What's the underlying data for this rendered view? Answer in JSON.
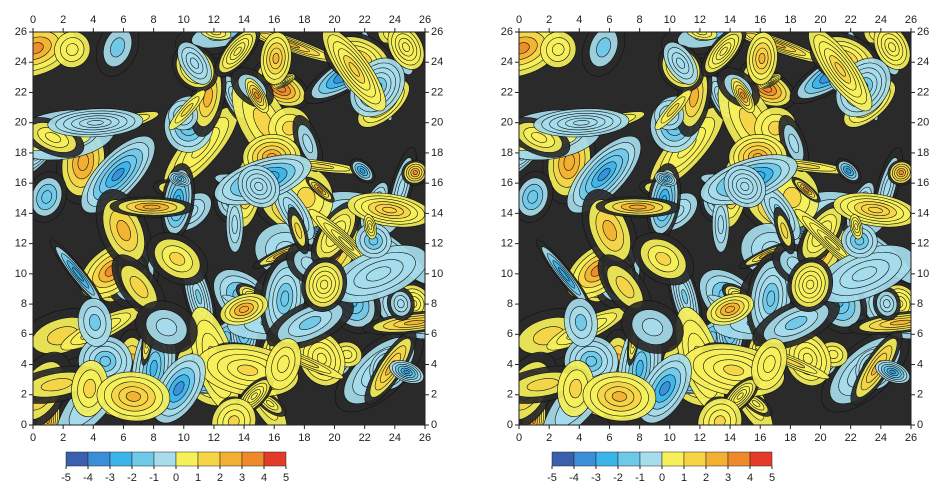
{
  "chart_data": [
    {
      "type": "contour",
      "xlim": [
        0,
        26
      ],
      "ylim": [
        0,
        26
      ],
      "xticks": [
        0,
        2,
        4,
        6,
        8,
        10,
        12,
        14,
        16,
        18,
        20,
        22,
        24,
        26
      ],
      "yticks": [
        0,
        2,
        4,
        6,
        8,
        10,
        12,
        14,
        16,
        18,
        20,
        22,
        24,
        26
      ],
      "colorbar": {
        "levels": [
          -5,
          -4,
          -3,
          -2,
          -1,
          0,
          1,
          2,
          3,
          4,
          5
        ],
        "colors": [
          "#3a5fad",
          "#3a8fd8",
          "#3bb4ea",
          "#6ec8e8",
          "#a6dcec",
          "#f6f05a",
          "#f5d446",
          "#f2b032",
          "#ee8a2c",
          "#e43a2a"
        ]
      }
    },
    {
      "type": "contour",
      "xlim": [
        0,
        26
      ],
      "ylim": [
        0,
        26
      ],
      "xticks": [
        0,
        2,
        4,
        6,
        8,
        10,
        12,
        14,
        16,
        18,
        20,
        22,
        24,
        26
      ],
      "yticks": [
        0,
        2,
        4,
        6,
        8,
        10,
        12,
        14,
        16,
        18,
        20,
        22,
        24,
        26
      ],
      "colorbar": {
        "levels": [
          -5,
          -4,
          -3,
          -2,
          -1,
          0,
          1,
          2,
          3,
          4,
          5
        ],
        "colors": [
          "#3a5fad",
          "#3a8fd8",
          "#3bb4ea",
          "#6ec8e8",
          "#a6dcec",
          "#f6f05a",
          "#f5d446",
          "#f2b032",
          "#ee8a2c",
          "#e43a2a"
        ]
      }
    }
  ]
}
